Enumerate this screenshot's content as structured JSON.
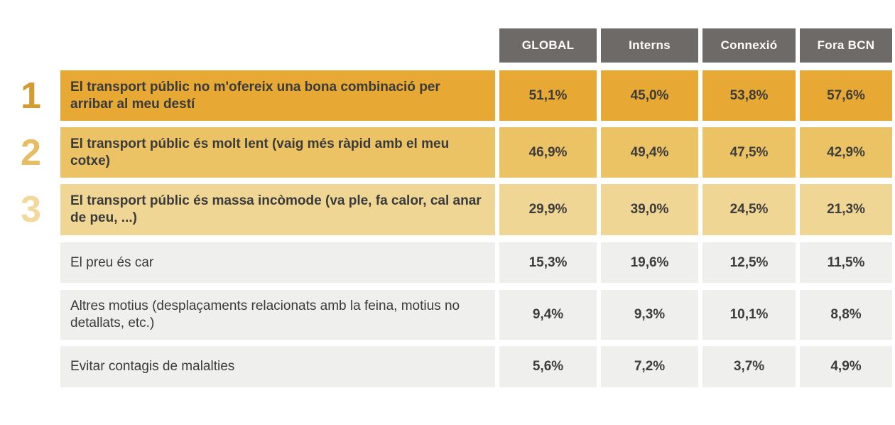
{
  "table": {
    "columns": [
      "GLOBAL",
      "Interns",
      "Connexió",
      "Fora BCN"
    ],
    "rows": [
      {
        "rank": "1",
        "label": "El transport públic no m'ofereix una bona combinació per arribar al meu destí",
        "values": [
          "51,1%",
          "45,0%",
          "53,8%",
          "57,6%"
        ],
        "tier": "gold1"
      },
      {
        "rank": "2",
        "label": "El transport públic és molt lent (vaig més ràpid amb el meu cotxe)",
        "values": [
          "46,9%",
          "49,4%",
          "47,5%",
          "42,9%"
        ],
        "tier": "gold2"
      },
      {
        "rank": "3",
        "label": "El transport públic és massa incòmode (va ple, fa calor, cal anar de peu, ...)",
        "values": [
          "29,9%",
          "39,0%",
          "24,5%",
          "21,3%"
        ],
        "tier": "gold3"
      },
      {
        "rank": "",
        "label": "El preu és car",
        "values": [
          "15,3%",
          "19,6%",
          "12,5%",
          "11,5%"
        ],
        "tier": "gray"
      },
      {
        "rank": "",
        "label": "Altres motius (desplaçaments relacionats amb la feina, motius no detallats, etc.)",
        "values": [
          "9,4%",
          "9,3%",
          "10,1%",
          "8,8%"
        ],
        "tier": "gray"
      },
      {
        "rank": "",
        "label": "Evitar contagis de malalties",
        "values": [
          "5,6%",
          "7,2%",
          "3,7%",
          "4,9%"
        ],
        "tier": "gray"
      }
    ],
    "colors": {
      "header_bg": "#6e6a67",
      "header_text": "#ffffff",
      "gold1": "#e7a933",
      "gold2": "#ecc364",
      "gold3": "#f0d695",
      "gray": "#efefee",
      "rank1": "#d49b2f",
      "rank2": "#e6bd62",
      "rank3": "#f2d99b",
      "cell_text": "#3c3c3c"
    }
  },
  "chart_data": {
    "type": "table",
    "title": "",
    "columns": [
      "GLOBAL",
      "Interns",
      "Connexió",
      "Fora BCN"
    ],
    "rows": [
      {
        "rank": 1,
        "label": "El transport públic no m'ofereix una bona combinació per arribar al meu destí",
        "values": [
          51.1,
          45.0,
          53.8,
          57.6
        ]
      },
      {
        "rank": 2,
        "label": "El transport públic és molt lent (vaig més ràpid amb el meu cotxe)",
        "values": [
          46.9,
          49.4,
          47.5,
          42.9
        ]
      },
      {
        "rank": 3,
        "label": "El transport públic és massa incòmode (va ple, fa calor, cal anar de peu, ...)",
        "values": [
          29.9,
          39.0,
          24.5,
          21.3
        ]
      },
      {
        "rank": null,
        "label": "El preu és car",
        "values": [
          15.3,
          19.6,
          12.5,
          11.5
        ]
      },
      {
        "rank": null,
        "label": "Altres motius (desplaçaments relacionats amb la feina, motius no detallats, etc.)",
        "values": [
          9.4,
          9.3,
          10.1,
          8.8
        ]
      },
      {
        "rank": null,
        "label": "Evitar contagis de malalties",
        "values": [
          5.6,
          7.2,
          3.7,
          4.9
        ]
      }
    ],
    "value_unit": "%",
    "decimal_separator": ","
  }
}
